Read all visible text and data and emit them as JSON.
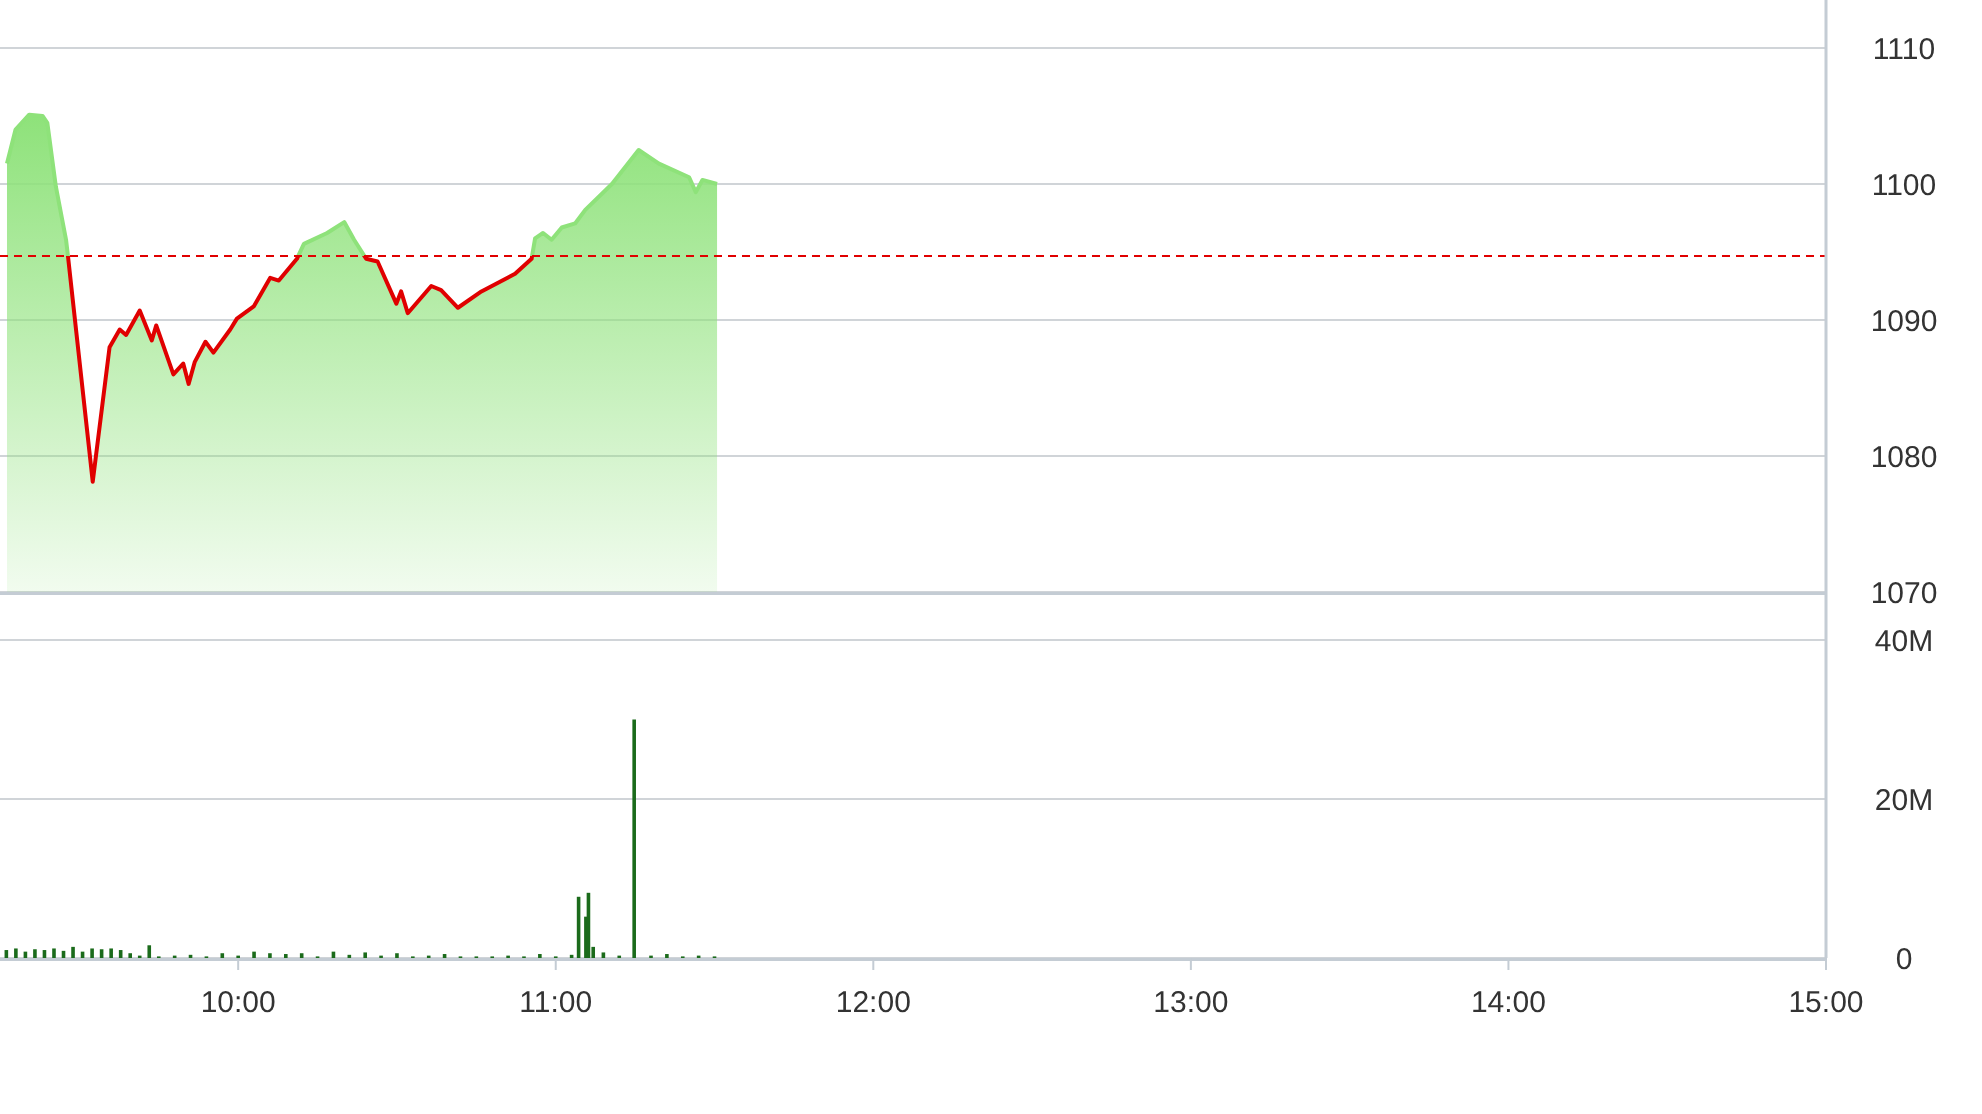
{
  "chart_data": [
    {
      "type": "area",
      "x": [
        9.272,
        9.299,
        9.342,
        9.384,
        9.399,
        9.426,
        9.458,
        9.464,
        9.542,
        9.595,
        9.627,
        9.647,
        9.69,
        9.728,
        9.742,
        9.796,
        9.827,
        9.844,
        9.863,
        9.897,
        9.922,
        9.975,
        9.996,
        10.049,
        10.101,
        10.128,
        10.185,
        10.207,
        10.28,
        10.334,
        10.365,
        10.403,
        10.439,
        10.498,
        10.513,
        10.534,
        10.608,
        10.639,
        10.692,
        10.766,
        10.872,
        10.924,
        10.935,
        10.96,
        10.987,
        11.019,
        11.061,
        11.093,
        11.177,
        11.261,
        11.325,
        11.42,
        11.441,
        11.462,
        11.508
      ],
      "values": [
        1101.5,
        1104.0,
        1105.1,
        1105.0,
        1104.5,
        1099.8,
        1095.9,
        1094.7,
        1078.1,
        1088.0,
        1089.3,
        1088.9,
        1090.7,
        1088.5,
        1089.6,
        1086.0,
        1086.8,
        1085.3,
        1086.9,
        1088.4,
        1087.6,
        1089.3,
        1090.1,
        1091.0,
        1093.1,
        1092.9,
        1094.5,
        1095.6,
        1096.4,
        1097.2,
        1095.9,
        1094.5,
        1094.3,
        1091.2,
        1092.1,
        1090.5,
        1092.5,
        1092.2,
        1090.9,
        1092.1,
        1093.4,
        1094.5,
        1096.0,
        1096.4,
        1095.9,
        1096.8,
        1097.1,
        1098.1,
        1100.0,
        1102.5,
        1101.5,
        1100.5,
        1099.4,
        1100.3,
        1100.0
      ],
      "color": "#8ee27a",
      "xlim": [
        9.25,
        15
      ],
      "ylim": [
        1070,
        1110
      ],
      "yticks": [
        1070,
        1080,
        1090,
        1100,
        1110
      ],
      "grid": "y",
      "tick_labels": "y",
      "ref_lines": [
        {
          "axis": "y",
          "value": 1094.7,
          "color": "#e00000",
          "line_style": "dashed"
        }
      ]
    },
    {
      "type": "bar",
      "x": [
        9.27,
        9.3,
        9.33,
        9.36,
        9.39,
        9.42,
        9.45,
        9.48,
        9.51,
        9.54,
        9.57,
        9.6,
        9.63,
        9.66,
        9.69,
        9.72,
        9.75,
        9.8,
        9.85,
        9.9,
        9.95,
        10.0,
        10.05,
        10.1,
        10.15,
        10.2,
        10.25,
        10.3,
        10.35,
        10.4,
        10.45,
        10.5,
        10.55,
        10.6,
        10.65,
        10.7,
        10.75,
        10.8,
        10.85,
        10.9,
        10.95,
        11.0,
        11.05,
        11.072,
        11.095,
        11.103,
        11.118,
        11.15,
        11.2,
        11.247,
        11.3,
        11.35,
        11.4,
        11.45,
        11.5
      ],
      "values": [
        1.0,
        1.2,
        0.8,
        1.1,
        1.0,
        1.2,
        0.9,
        1.4,
        0.8,
        1.2,
        1.1,
        1.2,
        1.0,
        0.6,
        0.3,
        1.6,
        0.2,
        0.3,
        0.4,
        0.2,
        0.6,
        0.3,
        0.8,
        0.6,
        0.5,
        0.6,
        0.2,
        0.8,
        0.4,
        0.7,
        0.3,
        0.6,
        0.2,
        0.3,
        0.5,
        0.2,
        0.2,
        0.2,
        0.3,
        0.2,
        0.5,
        0.2,
        0.4,
        7.7,
        5.2,
        8.2,
        1.4,
        0.7,
        0.3,
        30,
        0.3,
        0.5,
        0.2,
        0.3,
        0.2
      ],
      "color": "#1b6b1b",
      "xlim": [
        9.25,
        15
      ],
      "ylim": [
        0,
        40
      ],
      "yticks": [
        0,
        {
          "value": 20,
          "label": "20M"
        },
        {
          "value": 40,
          "label": "40M"
        }
      ],
      "xticks": [
        {
          "value": 10,
          "label": "10:00"
        },
        {
          "value": 11,
          "label": "11:00"
        },
        {
          "value": 12,
          "label": "12:00"
        },
        {
          "value": 13,
          "label": "13:00"
        },
        {
          "value": 14,
          "label": "14:00"
        },
        {
          "value": 15,
          "label": "15:00"
        }
      ],
      "grid": "y"
    }
  ]
}
